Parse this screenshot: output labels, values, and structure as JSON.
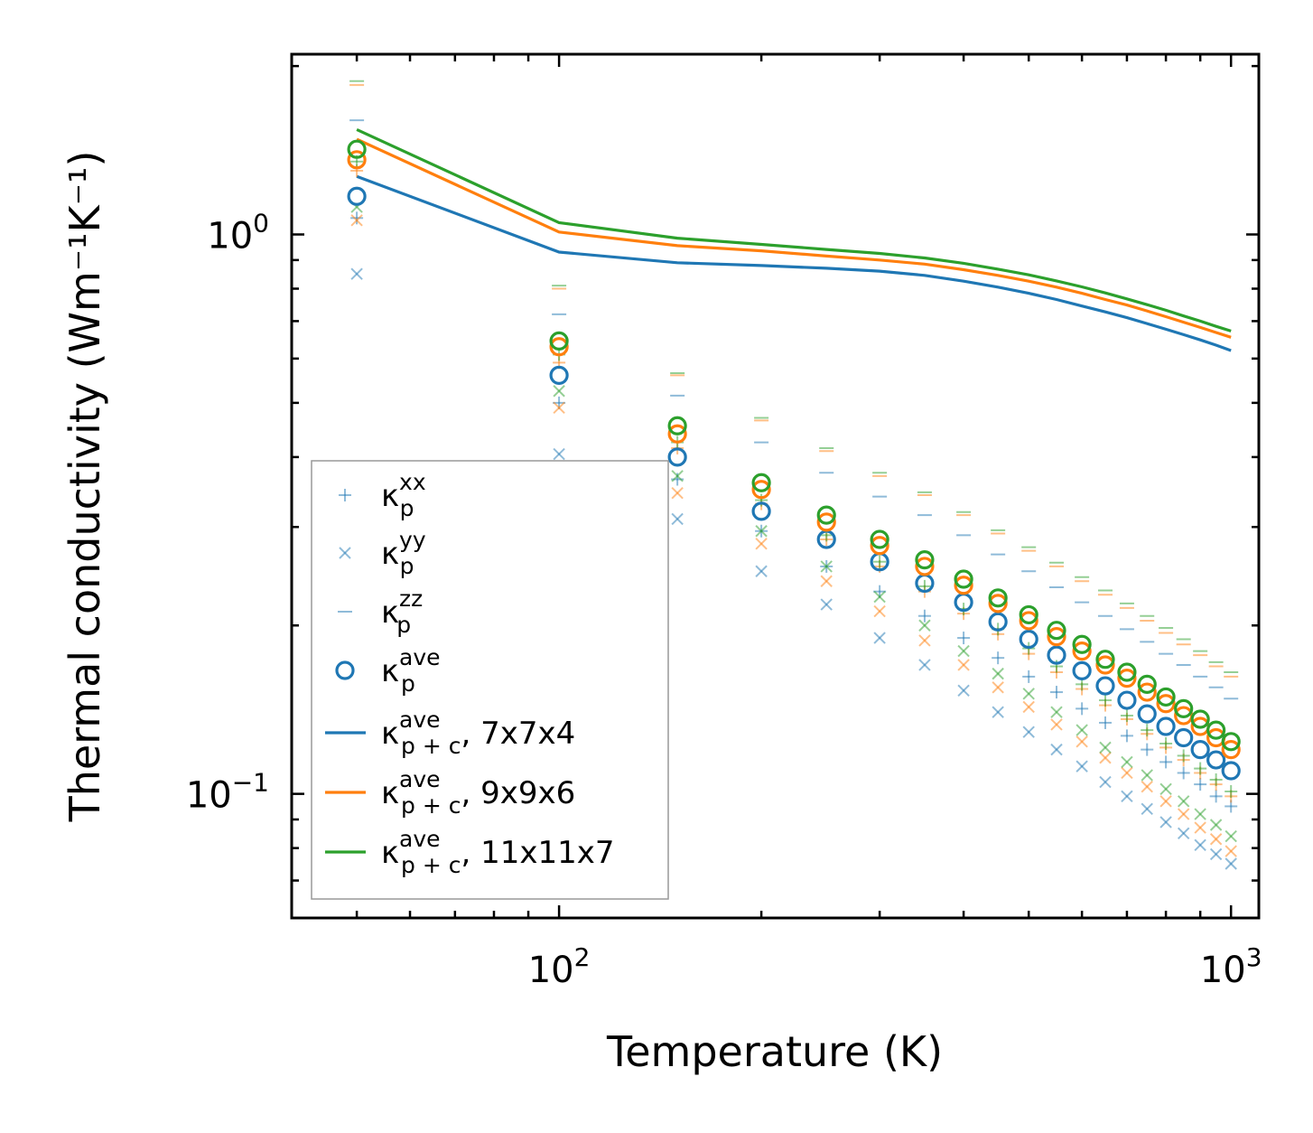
{
  "chart_data": {
    "type": "scatter+line",
    "xscale": "log",
    "yscale": "log",
    "xlim": [
      40,
      1100
    ],
    "ylim": [
      0.06,
      2.1
    ],
    "xlabel": "Temperature (K)",
    "ylabel": "Thermal conductivity (Wm⁻¹K⁻¹)",
    "xticks": [
      {
        "value": 100,
        "base": "10",
        "exp": "2"
      },
      {
        "value": 1000,
        "base": "10",
        "exp": "3"
      }
    ],
    "yticks": [
      {
        "value": 0.1,
        "base": "10",
        "exp": "−1"
      },
      {
        "value": 1,
        "base": "10",
        "exp": "0"
      }
    ],
    "colors": {
      "blue": "#1f77b4",
      "orange": "#ff7f0e",
      "green": "#2ca02c"
    },
    "x": [
      50,
      100,
      150,
      200,
      250,
      300,
      350,
      400,
      450,
      500,
      550,
      600,
      650,
      700,
      750,
      800,
      850,
      900,
      950,
      1000
    ],
    "lines": [
      {
        "name": "7x7x4",
        "color": "#1f77b4",
        "values": [
          1.27,
          0.93,
          0.89,
          0.88,
          0.87,
          0.86,
          0.845,
          0.825,
          0.805,
          0.785,
          0.765,
          0.745,
          0.727,
          0.71,
          0.693,
          0.677,
          0.662,
          0.648,
          0.634,
          0.62
        ]
      },
      {
        "name": "9x9x6",
        "color": "#ff7f0e",
        "values": [
          1.48,
          1.01,
          0.955,
          0.935,
          0.915,
          0.9,
          0.885,
          0.865,
          0.845,
          0.825,
          0.805,
          0.785,
          0.765,
          0.748,
          0.73,
          0.713,
          0.697,
          0.682,
          0.668,
          0.655
        ]
      },
      {
        "name": "11x11x7",
        "color": "#2ca02c",
        "values": [
          1.54,
          1.05,
          0.985,
          0.96,
          0.94,
          0.925,
          0.908,
          0.888,
          0.867,
          0.847,
          0.826,
          0.806,
          0.786,
          0.767,
          0.749,
          0.732,
          0.715,
          0.7,
          0.685,
          0.672
        ]
      }
    ],
    "scatter": [
      {
        "kind": "ave",
        "color": "#1f77b4",
        "values": [
          1.17,
          0.56,
          0.4,
          0.32,
          0.285,
          0.26,
          0.238,
          0.22,
          0.203,
          0.189,
          0.177,
          0.166,
          0.156,
          0.147,
          0.139,
          0.132,
          0.126,
          0.12,
          0.115,
          0.11
        ]
      },
      {
        "kind": "ave",
        "color": "#ff7f0e",
        "values": [
          1.36,
          0.63,
          0.44,
          0.35,
          0.306,
          0.278,
          0.255,
          0.236,
          0.219,
          0.204,
          0.191,
          0.18,
          0.17,
          0.161,
          0.152,
          0.145,
          0.138,
          0.132,
          0.126,
          0.12
        ]
      },
      {
        "kind": "ave",
        "color": "#2ca02c",
        "values": [
          1.42,
          0.645,
          0.455,
          0.36,
          0.315,
          0.285,
          0.262,
          0.242,
          0.224,
          0.209,
          0.196,
          0.185,
          0.174,
          0.165,
          0.157,
          0.149,
          0.142,
          0.136,
          0.13,
          0.124
        ]
      },
      {
        "kind": "xx",
        "color": "#1f77b4",
        "values": [
          1.07,
          0.5,
          0.365,
          0.295,
          0.255,
          0.23,
          0.208,
          0.19,
          0.175,
          0.162,
          0.152,
          0.142,
          0.134,
          0.127,
          0.12,
          0.114,
          0.109,
          0.104,
          0.099,
          0.095
        ]
      },
      {
        "kind": "xx",
        "color": "#ff7f0e",
        "values": [
          1.3,
          0.59,
          0.415,
          0.33,
          0.285,
          0.255,
          0.23,
          0.21,
          0.193,
          0.178,
          0.165,
          0.154,
          0.144,
          0.136,
          0.128,
          0.121,
          0.115,
          0.109,
          0.104,
          0.099
        ]
      },
      {
        "kind": "xx",
        "color": "#2ca02c",
        "values": [
          1.35,
          0.61,
          0.425,
          0.335,
          0.29,
          0.26,
          0.235,
          0.214,
          0.197,
          0.182,
          0.169,
          0.157,
          0.147,
          0.138,
          0.13,
          0.123,
          0.117,
          0.111,
          0.106,
          0.101
        ]
      },
      {
        "kind": "yy",
        "color": "#1f77b4",
        "values": [
          0.85,
          0.405,
          0.31,
          0.25,
          0.218,
          0.19,
          0.17,
          0.153,
          0.14,
          0.129,
          0.12,
          0.112,
          0.105,
          0.099,
          0.094,
          0.089,
          0.085,
          0.081,
          0.078,
          0.075
        ]
      },
      {
        "kind": "yy",
        "color": "#ff7f0e",
        "values": [
          1.06,
          0.49,
          0.345,
          0.28,
          0.24,
          0.212,
          0.188,
          0.17,
          0.155,
          0.143,
          0.133,
          0.124,
          0.116,
          0.109,
          0.103,
          0.097,
          0.092,
          0.087,
          0.083,
          0.079
        ]
      },
      {
        "kind": "yy",
        "color": "#2ca02c",
        "values": [
          1.12,
          0.525,
          0.37,
          0.295,
          0.255,
          0.225,
          0.2,
          0.18,
          0.164,
          0.151,
          0.14,
          0.13,
          0.121,
          0.114,
          0.108,
          0.102,
          0.097,
          0.092,
          0.088,
          0.084
        ]
      },
      {
        "kind": "zz",
        "color": "#1f77b4",
        "values": [
          1.6,
          0.72,
          0.515,
          0.425,
          0.375,
          0.34,
          0.315,
          0.29,
          0.268,
          0.25,
          0.234,
          0.22,
          0.208,
          0.197,
          0.187,
          0.178,
          0.17,
          0.162,
          0.155,
          0.148
        ]
      },
      {
        "kind": "zz",
        "color": "#ff7f0e",
        "values": [
          1.85,
          0.8,
          0.56,
          0.465,
          0.41,
          0.37,
          0.342,
          0.315,
          0.292,
          0.272,
          0.255,
          0.24,
          0.227,
          0.215,
          0.204,
          0.194,
          0.185,
          0.177,
          0.169,
          0.162
        ]
      },
      {
        "kind": "zz",
        "color": "#2ca02c",
        "values": [
          1.88,
          0.81,
          0.565,
          0.47,
          0.415,
          0.375,
          0.346,
          0.319,
          0.296,
          0.276,
          0.259,
          0.244,
          0.231,
          0.219,
          0.208,
          0.198,
          0.189,
          0.18,
          0.172,
          0.165
        ]
      }
    ],
    "legend": {
      "placement": "lower-left",
      "entries": [
        {
          "marker": "plus",
          "color": "#1f77b4",
          "base": "κ",
          "sub": "p",
          "sup": "xx",
          "suffix": ""
        },
        {
          "marker": "cross",
          "color": "#1f77b4",
          "base": "κ",
          "sub": "p",
          "sup": "yy",
          "suffix": ""
        },
        {
          "marker": "dash",
          "color": "#1f77b4",
          "base": "κ",
          "sub": "p",
          "sup": "zz",
          "suffix": ""
        },
        {
          "marker": "circle",
          "color": "#1f77b4",
          "base": "κ",
          "sub": "p",
          "sup": "ave",
          "suffix": ""
        },
        {
          "marker": "line",
          "color": "#1f77b4",
          "base": "κ",
          "sub": "p + c",
          "sup": "ave",
          "suffix": ", 7x7x4"
        },
        {
          "marker": "line",
          "color": "#ff7f0e",
          "base": "κ",
          "sub": "p + c",
          "sup": "ave",
          "suffix": ", 9x9x6"
        },
        {
          "marker": "line",
          "color": "#2ca02c",
          "base": "κ",
          "sub": "p + c",
          "sup": "ave",
          "suffix": ", 11x11x7"
        }
      ]
    }
  }
}
